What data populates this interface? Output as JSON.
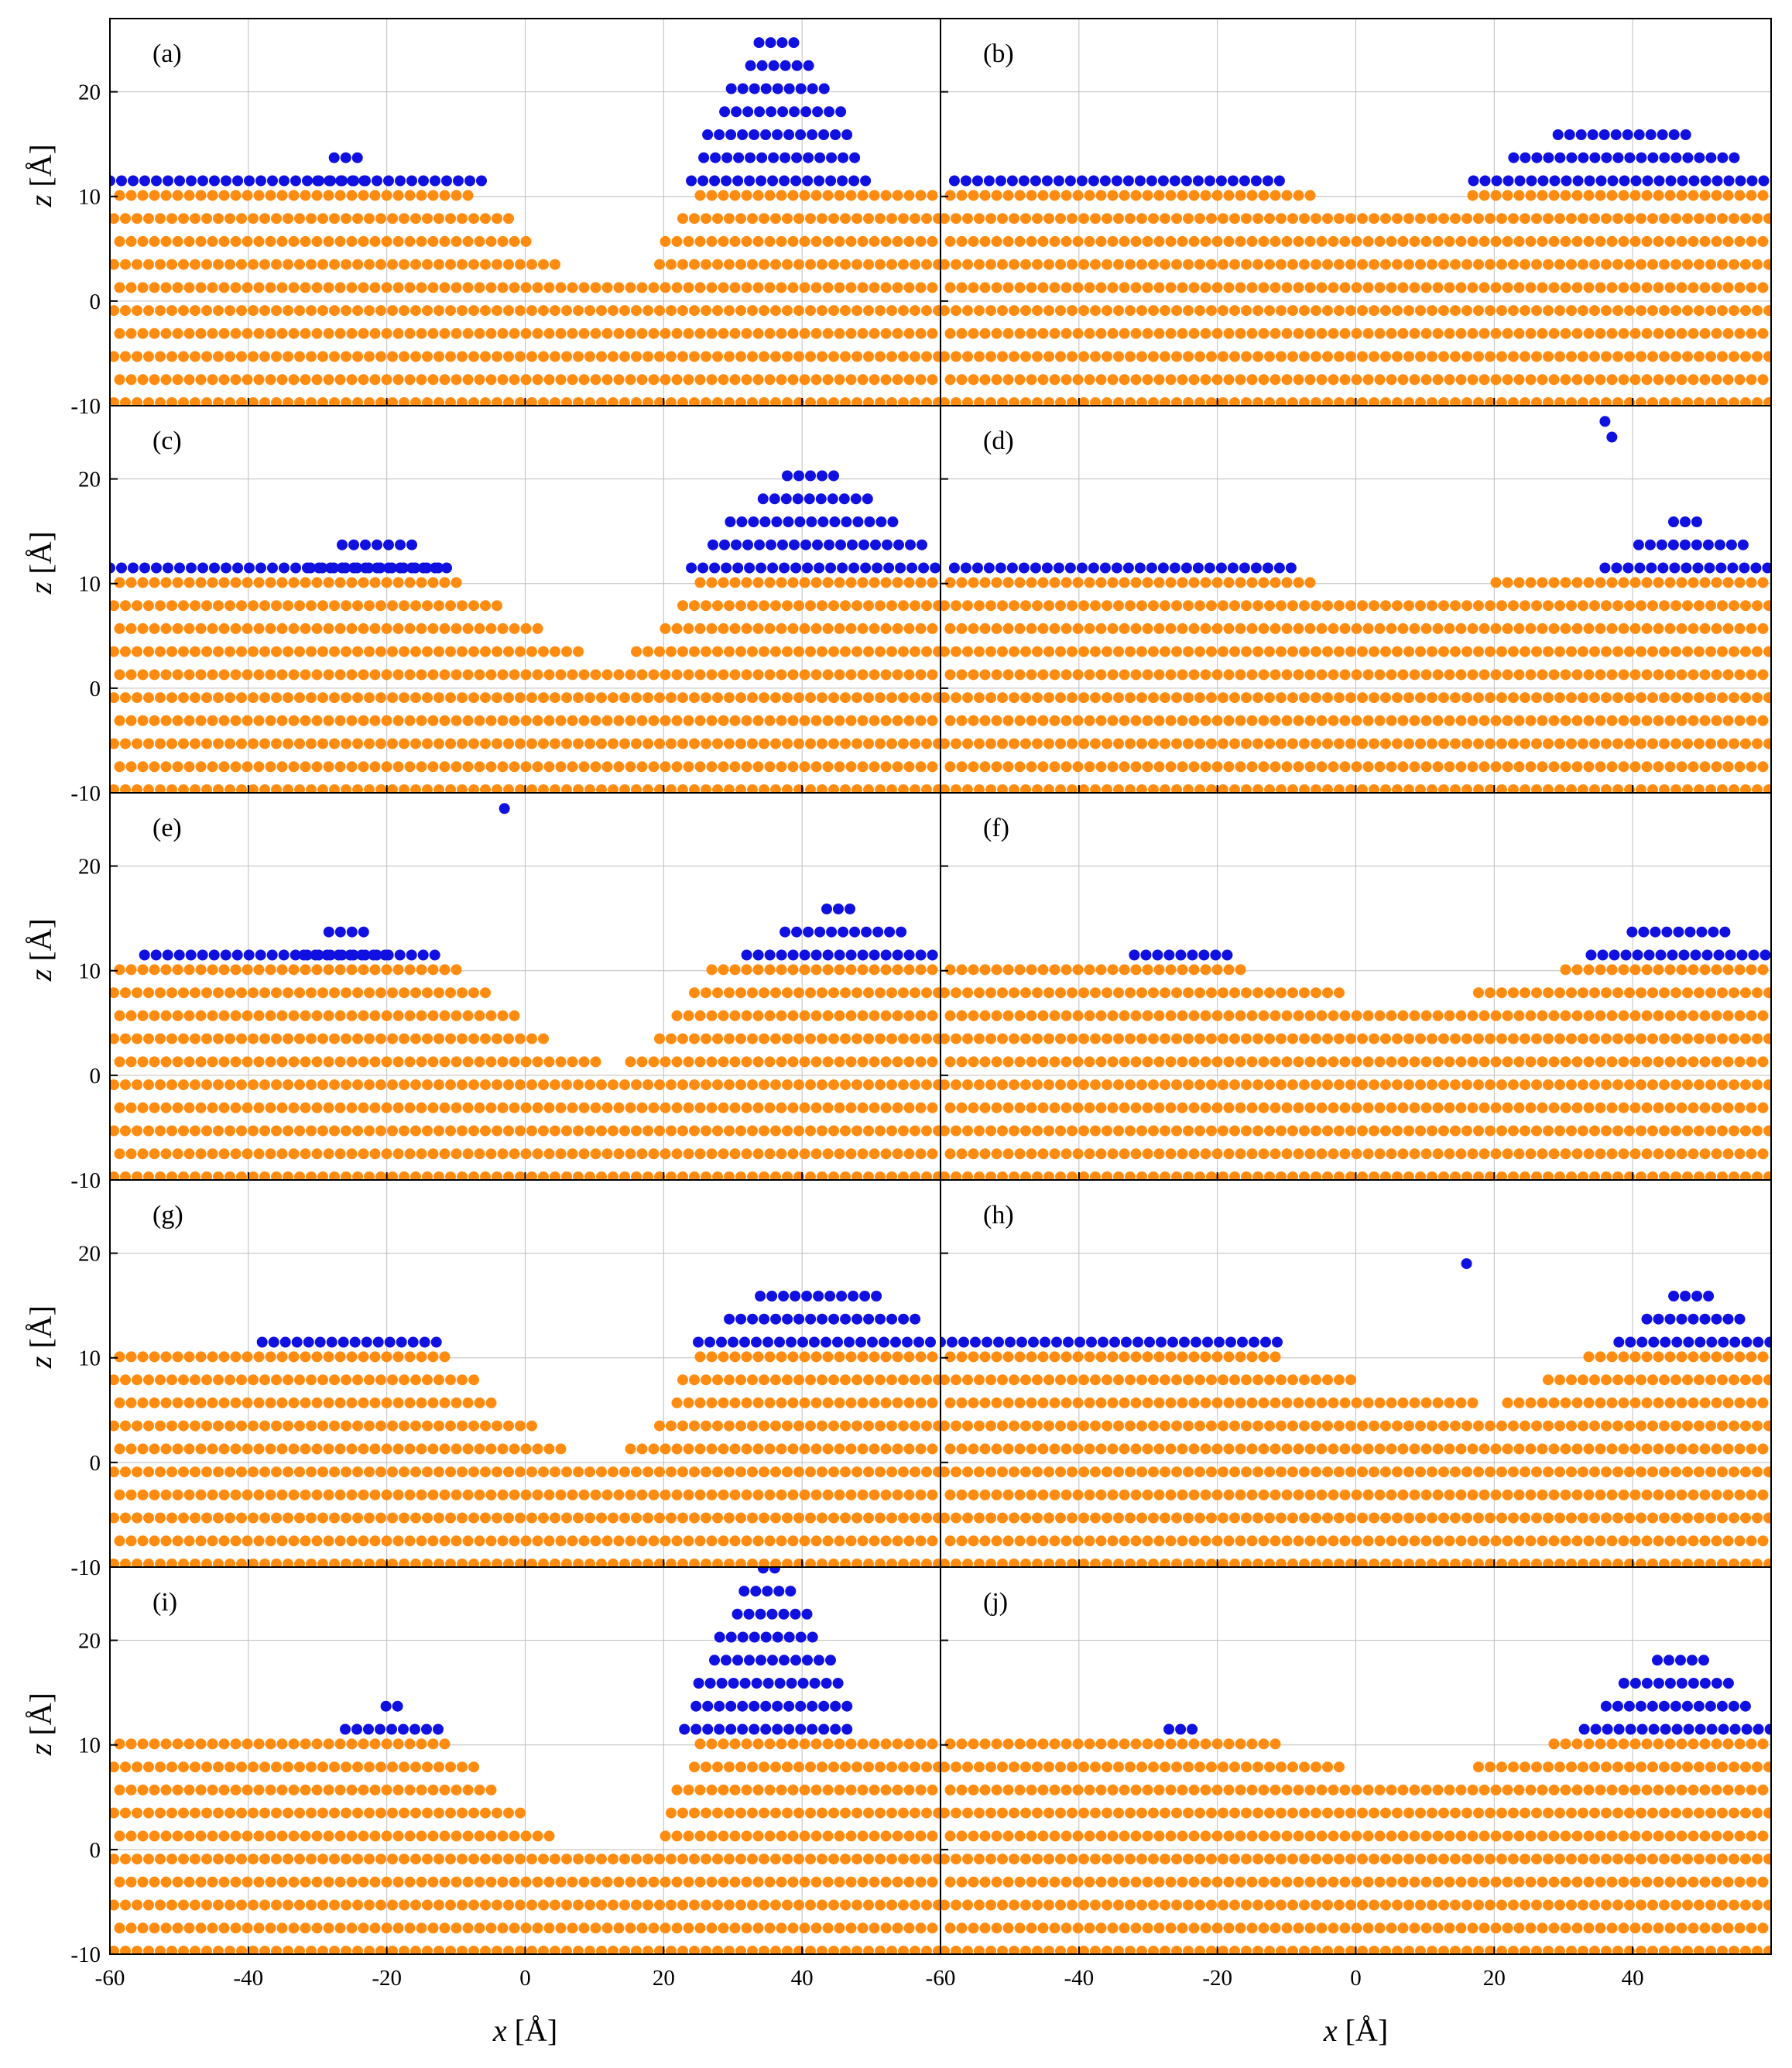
{
  "chart_data": {
    "type": "scatter",
    "layout": {
      "rows": 5,
      "cols": 2,
      "shared_x": true,
      "shared_y": true
    },
    "xlabel": {
      "var": "x",
      "unit": " [Å]"
    },
    "ylabel": {
      "var": "z",
      "unit": " [Å]"
    },
    "xlim": [
      -60,
      60
    ],
    "ylim": [
      -10,
      27
    ],
    "x_ticks": [
      -60,
      -40,
      -20,
      0,
      20,
      40
    ],
    "y_ticks": [
      -10,
      0,
      10,
      20
    ],
    "grid": true,
    "colors": {
      "substrate": "#ff8c10",
      "adatom": "#1010e0",
      "grid": "#bdbdbd"
    },
    "series_legend": "none",
    "panels": [
      {
        "label": "(a)",
        "substrate_surface": [
          [
            -60,
            10.5
          ],
          [
            -8,
            10.5
          ],
          [
            -2,
            8.5
          ],
          [
            3,
            4.5
          ],
          [
            8,
            2.5
          ],
          [
            18,
            3.5
          ],
          [
            22,
            8
          ],
          [
            25,
            10.5
          ],
          [
            60,
            10.5
          ]
        ],
        "adatom_blobs": [
          [
            -60,
            -5,
            11.5
          ],
          [
            -30,
            -22,
            15.5
          ],
          [
            24,
            50,
            26
          ]
        ],
        "isolated": []
      },
      {
        "label": "(b)",
        "substrate_surface": [
          [
            -60,
            10.5
          ],
          [
            -8,
            10.5
          ],
          [
            0,
            9
          ],
          [
            12,
            9
          ],
          [
            18,
            10.5
          ],
          [
            60,
            10.5
          ]
        ],
        "adatom_blobs": [
          [
            -58,
            -10,
            12.5
          ],
          [
            17,
            60,
            17.5
          ]
        ],
        "isolated": []
      },
      {
        "label": "(c)",
        "substrate_surface": [
          [
            -60,
            10.5
          ],
          [
            -10,
            10.5
          ],
          [
            -2,
            7.5
          ],
          [
            8,
            3.5
          ],
          [
            14,
            2.5
          ],
          [
            20,
            6
          ],
          [
            25,
            10.5
          ],
          [
            60,
            10.5
          ]
        ],
        "adatom_blobs": [
          [
            -60,
            -10,
            11.5
          ],
          [
            -31,
            -12,
            15.5
          ],
          [
            24,
            60,
            21
          ]
        ],
        "isolated": []
      },
      {
        "label": "(d)",
        "substrate_surface": [
          [
            -60,
            10.5
          ],
          [
            -7,
            10.5
          ],
          [
            0,
            9
          ],
          [
            15,
            9
          ],
          [
            22,
            10.5
          ],
          [
            60,
            10.5
          ]
        ],
        "adatom_blobs": [
          [
            -58,
            -8,
            12.5
          ],
          [
            36,
            60,
            16
          ]
        ],
        "isolated": [
          [
            36,
            25.5
          ],
          [
            37,
            24
          ]
        ]
      },
      {
        "label": "(e)",
        "substrate_surface": [
          [
            -60,
            10.5
          ],
          [
            -10,
            10.5
          ],
          [
            0,
            5
          ],
          [
            8,
            1.5
          ],
          [
            14,
            1
          ],
          [
            20,
            5
          ],
          [
            27,
            10.5
          ],
          [
            60,
            10.5
          ]
        ],
        "adatom_blobs": [
          [
            -55,
            -12,
            11.5
          ],
          [
            -32,
            -20,
            15
          ],
          [
            32,
            60,
            16
          ]
        ],
        "isolated": [
          [
            -3,
            25.5
          ]
        ]
      },
      {
        "label": "(f)",
        "substrate_surface": [
          [
            -60,
            10.5
          ],
          [
            -18,
            10.5
          ],
          [
            -4,
            8.5
          ],
          [
            4,
            6.5
          ],
          [
            12,
            6.5
          ],
          [
            20,
            9
          ],
          [
            33,
            10.5
          ],
          [
            60,
            10.5
          ]
        ],
        "adatom_blobs": [
          [
            -32,
            -18,
            12
          ],
          [
            34,
            60,
            15.5
          ]
        ],
        "isolated": []
      },
      {
        "label": "(g)",
        "substrate_surface": [
          [
            -60,
            10.5
          ],
          [
            -12,
            10.5
          ],
          [
            -4,
            6
          ],
          [
            6,
            1.5
          ],
          [
            12,
            0
          ],
          [
            18,
            3
          ],
          [
            25,
            10.5
          ],
          [
            60,
            10.5
          ]
        ],
        "adatom_blobs": [
          [
            -38,
            -12,
            13.5
          ],
          [
            25,
            60,
            18
          ]
        ],
        "isolated": []
      },
      {
        "label": "(h)",
        "substrate_surface": [
          [
            -60,
            10.5
          ],
          [
            -12,
            10.5
          ],
          [
            -4,
            8.5
          ],
          [
            6,
            7
          ],
          [
            20,
            5.5
          ],
          [
            28,
            8
          ],
          [
            34,
            10.5
          ],
          [
            60,
            10.5
          ]
        ],
        "adatom_blobs": [
          [
            -60,
            -10,
            11.5
          ],
          [
            38,
            60,
            16.5
          ]
        ],
        "isolated": [
          [
            16,
            19
          ]
        ]
      },
      {
        "label": "(i)",
        "substrate_surface": [
          [
            -60,
            10.5
          ],
          [
            -12,
            10.5
          ],
          [
            -4,
            6
          ],
          [
            4,
            1.5
          ],
          [
            10,
            0
          ],
          [
            18,
            0.5
          ],
          [
            22,
            6
          ],
          [
            25,
            10.5
          ],
          [
            60,
            10.5
          ]
        ],
        "adatom_blobs": [
          [
            -26,
            -12,
            14
          ],
          [
            23,
            48,
            27
          ]
        ],
        "isolated": []
      },
      {
        "label": "(j)",
        "substrate_surface": [
          [
            -60,
            10.5
          ],
          [
            -12,
            10.5
          ],
          [
            -4,
            8.5
          ],
          [
            3,
            6.5
          ],
          [
            12,
            6.5
          ],
          [
            20,
            8.5
          ],
          [
            30,
            10.5
          ],
          [
            60,
            10.5
          ]
        ],
        "adatom_blobs": [
          [
            -27,
            -22,
            11.5
          ],
          [
            33,
            60,
            19
          ]
        ],
        "isolated": []
      }
    ]
  }
}
